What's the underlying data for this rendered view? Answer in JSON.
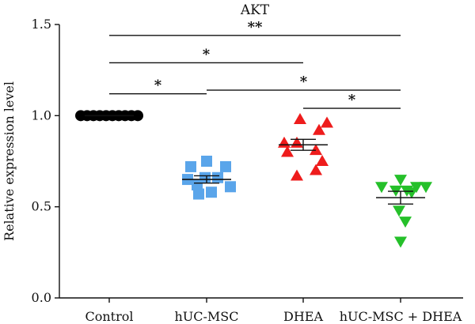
{
  "chart_data": {
    "type": "scatter",
    "title": "AKT",
    "xlabel": "",
    "ylabel": "Relative expression level",
    "ylim": [
      0.0,
      1.5
    ],
    "yticks": [
      "0.0",
      "0.5",
      "1.0",
      "1.5"
    ],
    "categories": [
      "Control",
      "hUC-MSC",
      "DHEA",
      "hUC-MSC + DHEA"
    ],
    "series": [
      {
        "category": "Control",
        "marker": "circle",
        "color": "#000000",
        "values": [
          1.0,
          1.0,
          1.0,
          1.0,
          1.0,
          1.0,
          1.0,
          1.0,
          1.0,
          1.0
        ],
        "mean": 1.0,
        "sem": 0.0
      },
      {
        "category": "hUC-MSC",
        "marker": "square",
        "color": "#5aa5ea",
        "values": [
          0.72,
          0.75,
          0.72,
          0.66,
          0.66,
          0.65,
          0.62,
          0.61,
          0.58,
          0.57
        ],
        "mean": 0.65,
        "sem": 0.02
      },
      {
        "category": "DHEA",
        "marker": "triangle-up",
        "color": "#ee1c1c",
        "values": [
          0.98,
          0.96,
          0.92,
          0.85,
          0.85,
          0.81,
          0.8,
          0.75,
          0.7,
          0.67
        ],
        "mean": 0.84,
        "sem": 0.03
      },
      {
        "category": "hUC-MSC + DHEA",
        "marker": "triangle-down",
        "color": "#25c02a",
        "values": [
          0.65,
          0.61,
          0.61,
          0.61,
          0.59,
          0.59,
          0.58,
          0.48,
          0.42,
          0.31
        ],
        "mean": 0.55,
        "sem": 0.035
      }
    ],
    "significance": [
      {
        "from": "Control",
        "to": "hUC-MSC",
        "label": "*",
        "y": 1.12
      },
      {
        "from": "Control",
        "to": "DHEA",
        "label": "*",
        "y": 1.29
      },
      {
        "from": "Control",
        "to": "hUC-MSC + DHEA",
        "label": "**",
        "y": 1.44
      },
      {
        "from": "hUC-MSC",
        "to": "hUC-MSC + DHEA",
        "label": "*",
        "y": 1.14
      },
      {
        "from": "DHEA",
        "to": "hUC-MSC + DHEA",
        "label": "*",
        "y": 1.04
      }
    ]
  }
}
